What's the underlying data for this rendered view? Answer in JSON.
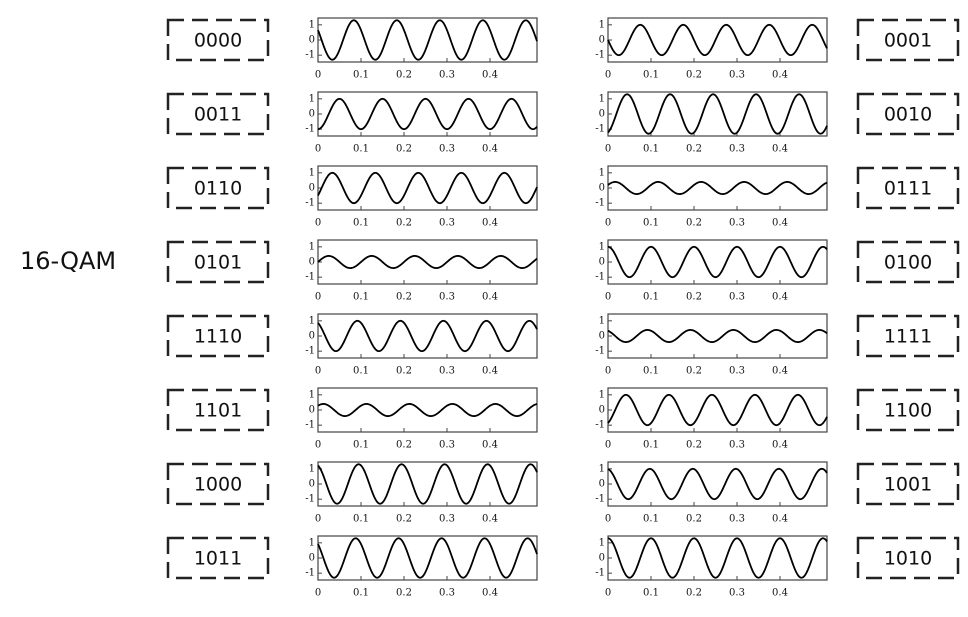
{
  "title": "16-QAM",
  "xlim": [
    0,
    0.5
  ],
  "ylim": [
    -1.45,
    1.45
  ],
  "xticks": [
    0,
    0.1,
    0.2,
    0.3,
    0.4
  ],
  "yticks": [
    1,
    0,
    -1
  ],
  "frequency": 10,
  "rows": [
    {
      "left": {
        "code": "0000",
        "amplitude": 1.3,
        "phase": 60
      },
      "right": {
        "code": "0001",
        "amplitude": 1.0,
        "phase": 90
      }
    },
    {
      "left": {
        "code": "0011",
        "amplitude": 1.0,
        "phase": 180
      },
      "right": {
        "code": "0010",
        "amplitude": 1.3,
        "phase": 200
      }
    },
    {
      "left": {
        "code": "0110",
        "amplitude": 1.0,
        "phase": -120
      },
      "right": {
        "code": "0111",
        "amplitude": 0.4,
        "phase": -60
      }
    },
    {
      "left": {
        "code": "0101",
        "amplitude": 0.4,
        "phase": -90
      },
      "right": {
        "code": "0100",
        "amplitude": 1.0,
        "phase": 0
      }
    },
    {
      "left": {
        "code": "1110",
        "amplitude": 1.0,
        "phase": 30
      },
      "right": {
        "code": "1111",
        "amplitude": 0.4,
        "phase": 30
      }
    },
    {
      "left": {
        "code": "1101",
        "amplitude": 0.4,
        "phase": -45
      },
      "right": {
        "code": "1100",
        "amplitude": 1.0,
        "phase": -150
      }
    },
    {
      "left": {
        "code": "1000",
        "amplitude": 1.3,
        "phase": 20
      },
      "right": {
        "code": "1001",
        "amplitude": 1.0,
        "phase": 10
      }
    },
    {
      "left": {
        "code": "1011",
        "amplitude": 1.3,
        "phase": 45
      },
      "right": {
        "code": "1010",
        "amplitude": 1.3,
        "phase": 0
      }
    }
  ]
}
